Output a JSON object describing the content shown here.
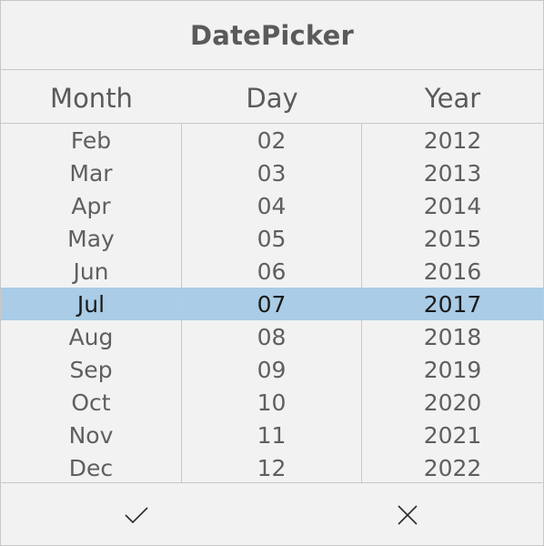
{
  "title": "DatePicker",
  "headers": {
    "month": "Month",
    "day": "Day",
    "year": "Year"
  },
  "months": [
    "Feb",
    "Mar",
    "Apr",
    "May",
    "Jun",
    "Jul",
    "Aug",
    "Sep",
    "Oct",
    "Nov",
    "Dec"
  ],
  "days": [
    "02",
    "03",
    "04",
    "05",
    "06",
    "07",
    "08",
    "09",
    "10",
    "11",
    "12"
  ],
  "years": [
    "2012",
    "2013",
    "2014",
    "2015",
    "2016",
    "2017",
    "2018",
    "2019",
    "2020",
    "2021",
    "2022"
  ],
  "selected": {
    "month": "Jul",
    "day": "07",
    "year": "2017"
  },
  "buttons": {
    "accept_icon": "checkmark-icon",
    "cancel_icon": "close-icon"
  },
  "colors": {
    "background": "#f2f2f2",
    "selection_highlight": "#aacce6",
    "border": "#c8c8c8"
  }
}
